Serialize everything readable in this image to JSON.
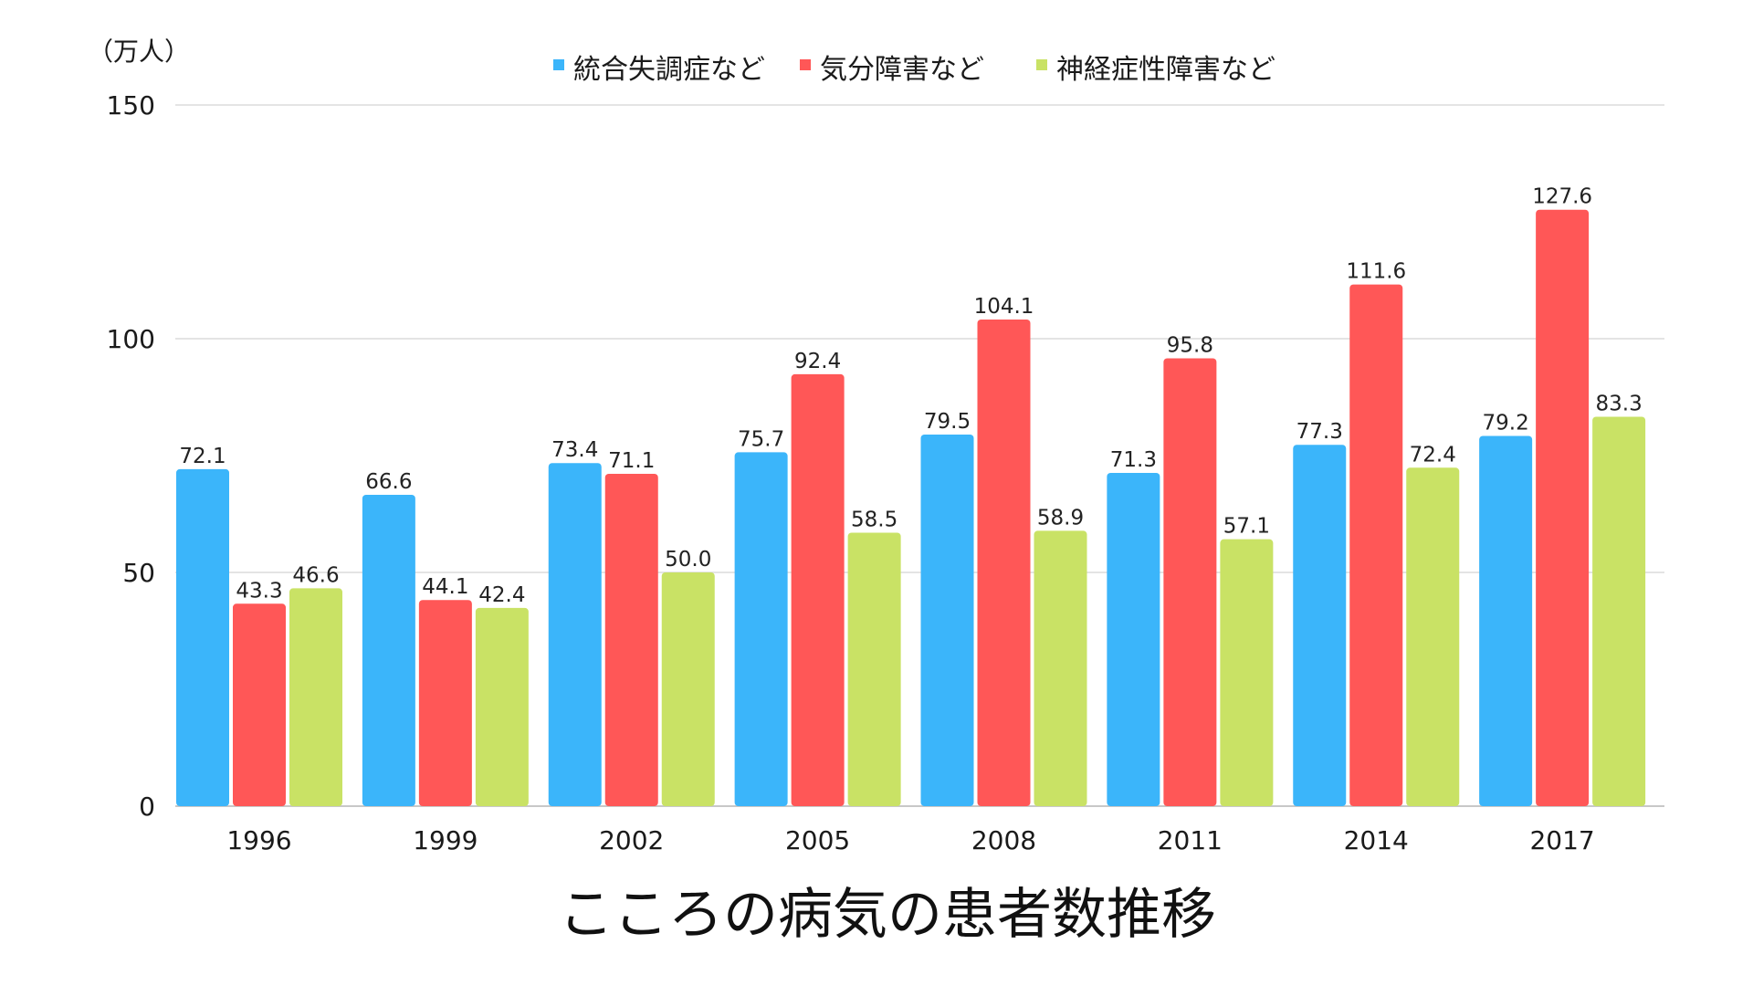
{
  "chart_data": {
    "type": "bar",
    "title": "こころの病気の患者数推移",
    "unit_label": "（万人）",
    "xlabel": "",
    "ylabel": "",
    "ylim": [
      0,
      150
    ],
    "yticks": [
      0,
      50,
      100,
      150
    ],
    "grid": true,
    "legend_position": "top-center",
    "categories": [
      "1996",
      "1999",
      "2002",
      "2005",
      "2008",
      "2011",
      "2014",
      "2017"
    ],
    "series": [
      {
        "name": "統合失調症など",
        "color": "#3bb5fa",
        "values": [
          72.1,
          66.6,
          73.4,
          75.7,
          79.5,
          71.3,
          77.3,
          79.2
        ],
        "labels": [
          "72.1",
          "66.6",
          "73.4",
          "75.7",
          "79.5",
          "71.3",
          "77.3",
          "79.2"
        ]
      },
      {
        "name": "気分障害など",
        "color": "#ff5757",
        "values": [
          43.3,
          44.1,
          71.1,
          92.4,
          104.1,
          95.8,
          111.6,
          127.6
        ],
        "labels": [
          "43.3",
          "44.1",
          "71.1",
          "92.4",
          "104.1",
          "95.8",
          "111.6",
          "127.6"
        ]
      },
      {
        "name": "神経症性障害など",
        "color": "#c9e265",
        "values": [
          46.6,
          42.4,
          50.0,
          58.5,
          58.9,
          57.1,
          72.4,
          83.3
        ],
        "labels": [
          "46.6",
          "42.4",
          "50.0",
          "58.5",
          "58.9",
          "57.1",
          "72.4",
          "83.3"
        ]
      }
    ]
  }
}
